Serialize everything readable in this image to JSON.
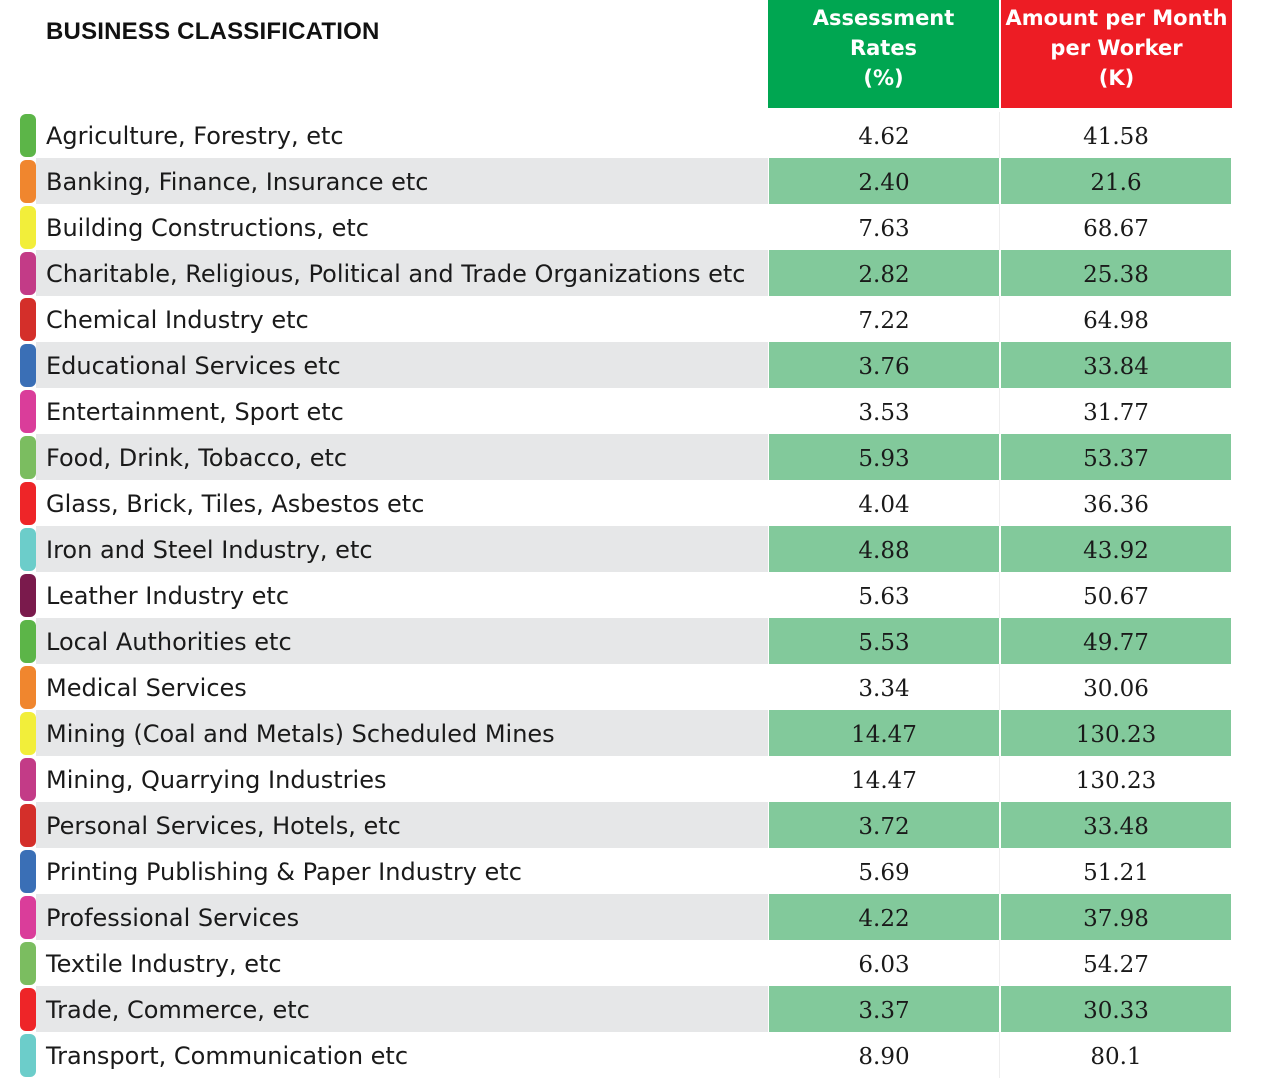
{
  "header": {
    "title": "BUSINESS CLASSIFICATION",
    "rate_col": [
      "Assessment",
      "Rates",
      "(%)"
    ],
    "amount_col": [
      "Amount per Month",
      "per Worker",
      "(K)"
    ]
  },
  "colors": {
    "rate_header_bg": "#00a651",
    "amount_header_bg": "#ed1c24",
    "alt_value_bg": "#82c99b",
    "alt_label_bg": "#e6e7e8"
  },
  "rows": [
    {
      "label": "Agriculture, Forestry, etc",
      "rate": "4.62",
      "amount": "41.58",
      "color": "#5cb548"
    },
    {
      "label": "Banking, Finance, Insurance etc",
      "rate": "2.40",
      "amount": "21.6",
      "color": "#f0862e"
    },
    {
      "label": "Building Constructions, etc",
      "rate": "7.63",
      "amount": "68.67",
      "color": "#f2ee3a"
    },
    {
      "label": "Charitable, Religious, Political and Trade Organizations etc",
      "rate": "2.82",
      "amount": "25.38",
      "color": "#c33b87"
    },
    {
      "label": "Chemical Industry etc",
      "rate": "7.22",
      "amount": "64.98",
      "color": "#d42f2a"
    },
    {
      "label": "Educational Services etc",
      "rate": "3.76",
      "amount": "33.84",
      "color": "#3a6fb6"
    },
    {
      "label": "Entertainment, Sport etc",
      "rate": "3.53",
      "amount": "31.77",
      "color": "#da3d9a"
    },
    {
      "label": "Food, Drink, Tobacco, etc",
      "rate": "5.93",
      "amount": "53.37",
      "color": "#7bbd60"
    },
    {
      "label": "Glass, Brick, Tiles, Asbestos etc",
      "rate": "4.04",
      "amount": "36.36",
      "color": "#ee2528"
    },
    {
      "label": "Iron and Steel Industry, etc",
      "rate": "4.88",
      "amount": "43.92",
      "color": "#6ccdca"
    },
    {
      "label": "Leather Industry etc",
      "rate": "5.63",
      "amount": "50.67",
      "color": "#7a1a4c"
    },
    {
      "label": "Local Authorities etc",
      "rate": "5.53",
      "amount": "49.77",
      "color": "#5cb548"
    },
    {
      "label": "Medical Services",
      "rate": "3.34",
      "amount": "30.06",
      "color": "#f0862e"
    },
    {
      "label": "Mining (Coal and Metals) Scheduled Mines",
      "rate": "14.47",
      "amount": "130.23",
      "color": "#f2ee3a"
    },
    {
      "label": "Mining, Quarrying Industries",
      "rate": "14.47",
      "amount": "130.23",
      "color": "#c33b87"
    },
    {
      "label": "Personal Services, Hotels, etc",
      "rate": "3.72",
      "amount": "33.48",
      "color": "#d42f2a"
    },
    {
      "label": "Printing Publishing & Paper Industry etc",
      "rate": "5.69",
      "amount": "51.21",
      "color": "#3a6fb6"
    },
    {
      "label": "Professional Services",
      "rate": "4.22",
      "amount": "37.98",
      "color": "#da3d9a"
    },
    {
      "label": "Textile Industry, etc",
      "rate": "6.03",
      "amount": "54.27",
      "color": "#7bbd60"
    },
    {
      "label": "Trade, Commerce, etc",
      "rate": "3.37",
      "amount": "30.33",
      "color": "#ee2528"
    },
    {
      "label": "Transport, Communication etc",
      "rate": "8.90",
      "amount": "80.1",
      "color": "#6ccdca"
    }
  ]
}
